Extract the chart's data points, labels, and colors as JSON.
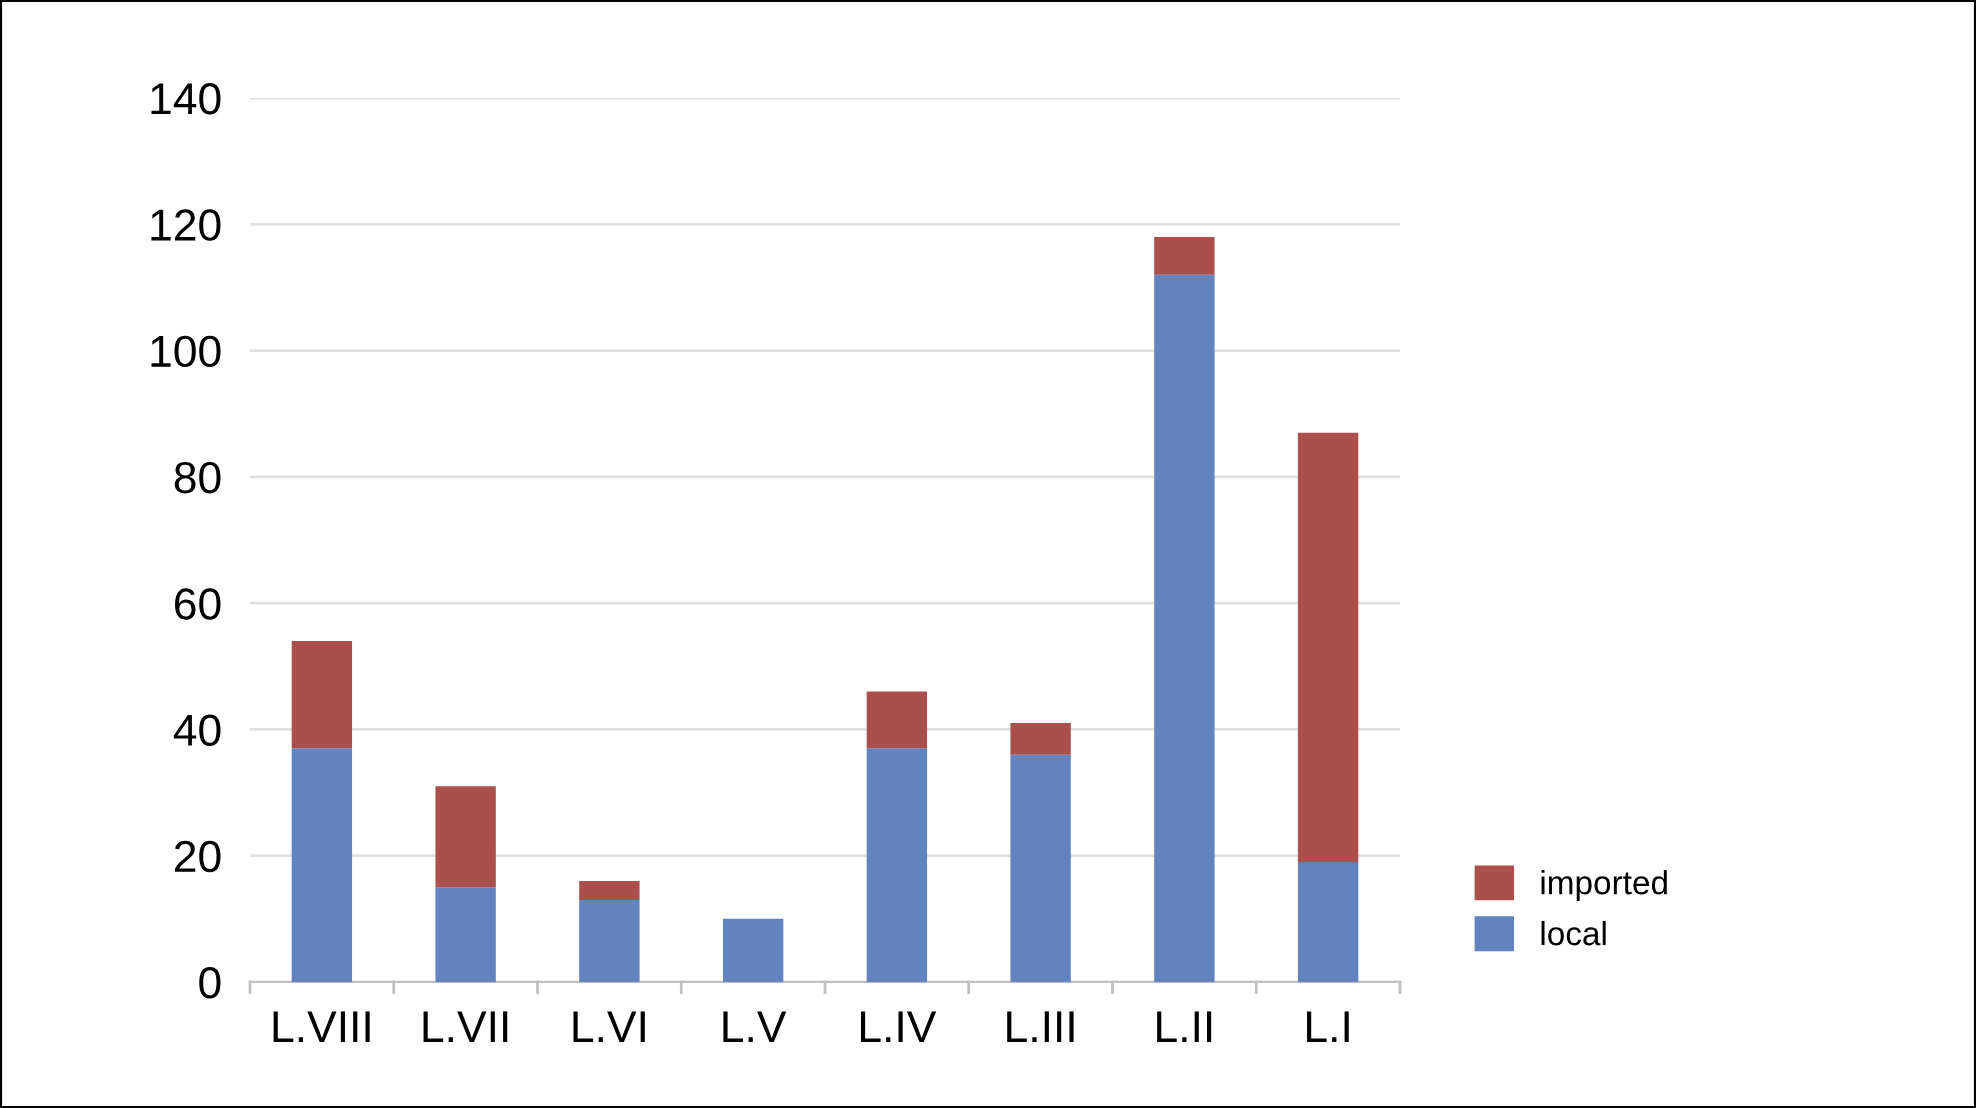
{
  "chart_data": {
    "type": "bar",
    "stacked": true,
    "categories": [
      "L.VIII",
      "L.VII",
      "L.VI",
      "L.V",
      "L.IV",
      "L.III",
      "L.II",
      "L.I"
    ],
    "series": [
      {
        "name": "local",
        "color": "#6383bf",
        "values": [
          37,
          15,
          13,
          10,
          37,
          36,
          112,
          19
        ]
      },
      {
        "name": "imported",
        "color": "#ab4f4c",
        "values": [
          17,
          16,
          3,
          0,
          9,
          5,
          6,
          68
        ]
      }
    ],
    "ylim": [
      0,
      140
    ],
    "yticks": [
      0,
      20,
      40,
      60,
      80,
      100,
      120,
      140
    ],
    "grid": "y",
    "legend": "right"
  }
}
